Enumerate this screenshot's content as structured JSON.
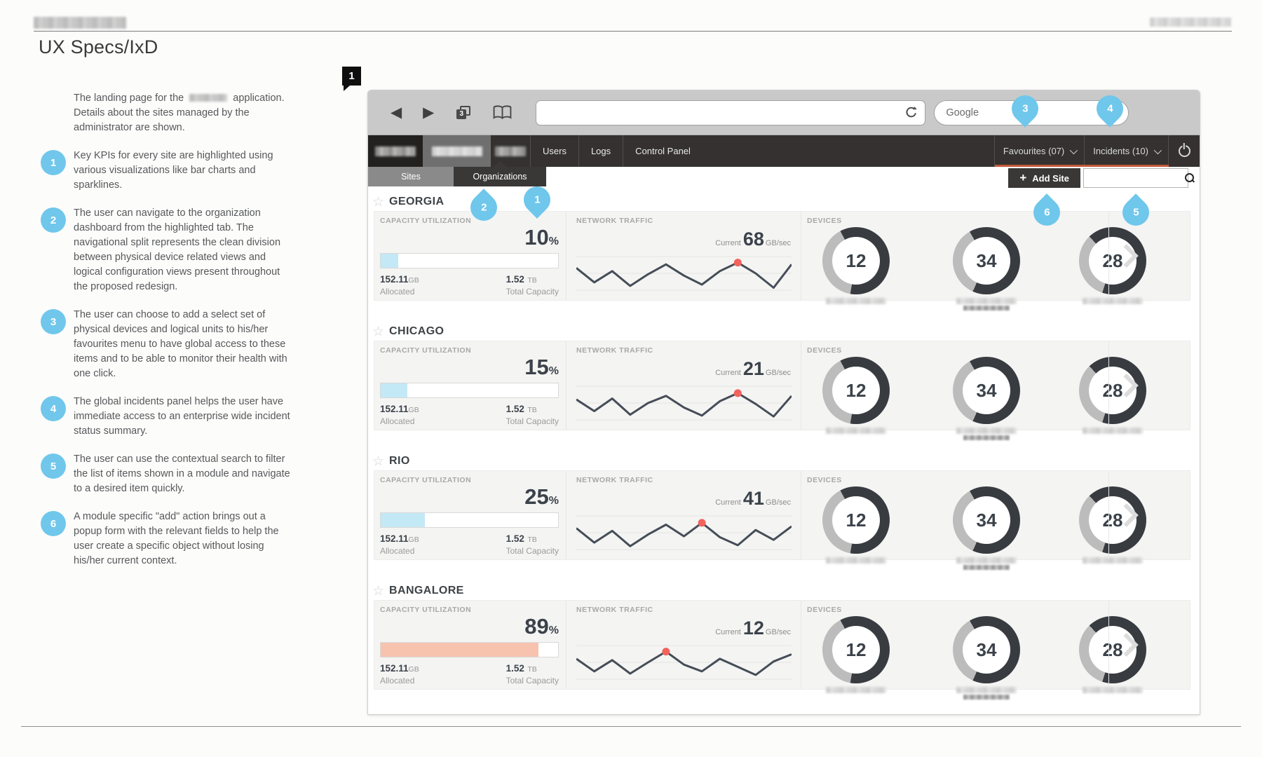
{
  "figure_label": "1",
  "page": {
    "title": "UX Specs/IxD"
  },
  "annotations": {
    "intro_before": "The landing page for the",
    "intro_after": "application. Details about the sites managed by the administrator are shown.",
    "items": [
      {
        "num": "1",
        "text": "Key KPIs for every site are highlighted using various visualizations like bar charts and sparklines."
      },
      {
        "num": "2",
        "text": "The user can navigate to the organization dashboard from the highlighted tab. The navigational split represents the clean division between physical device related views and logical configuration views present throughout the proposed redesign."
      },
      {
        "num": "3",
        "text": "The user can choose to add a select set of physical devices and logical units to his/her favourites menu to have global access to these items and to be able to monitor their health with one click."
      },
      {
        "num": "4",
        "text": "The global incidents panel helps the user have immediate access to an enterprise wide incident status summary."
      },
      {
        "num": "5",
        "text": "The user can use the contextual search to filter the list of items shown in a module and navigate to a desired item quickly."
      },
      {
        "num": "6",
        "text": "A module specific \"add\" action brings out a popup form with the relevant fields to help the user create a specific object without losing his/her current context."
      }
    ]
  },
  "browser": {
    "tab_count": "3",
    "search_engine": "Google",
    "nav_items": [
      "Users",
      "Logs",
      "Control Panel"
    ],
    "favourites_label": "Favourites (07)",
    "incidents_label": "Incidents (10)",
    "sites_tab": "Sites",
    "organizations_tab": "Organizations",
    "add_site_label": "Add Site",
    "add_site_plus": "+"
  },
  "dashboard_labels": {
    "capacity_title": "CAPACITY UTILIZATION",
    "traffic_title": "NETWORK TRAFFIC",
    "devices_title": "DEVICES",
    "current_label": "Current",
    "traffic_unit": "GB/sec",
    "allocated_label": "Allocated",
    "total_label": "Total Capacity",
    "allocated_unit": "GB",
    "total_unit": "TB"
  },
  "sites": [
    {
      "name": "GEORGIA",
      "capacity": {
        "percent": 10,
        "allocated": "152.11",
        "total": "1.52",
        "level": "normal"
      },
      "traffic": {
        "current": "68",
        "spark": [
          38,
          70,
          45,
          78,
          52,
          30,
          55,
          75,
          45,
          26,
          50,
          82,
          30
        ],
        "dot": 9
      },
      "devices": [
        "12",
        "34",
        "28"
      ]
    },
    {
      "name": "CHICAGO",
      "capacity": {
        "percent": 15,
        "allocated": "152.11",
        "total": "1.52",
        "level": "normal"
      },
      "traffic": {
        "current": "21",
        "spark": [
          42,
          68,
          40,
          76,
          50,
          34,
          60,
          78,
          46,
          28,
          52,
          80,
          34
        ],
        "dot": 9
      },
      "devices": [
        "12",
        "34",
        "28"
      ]
    },
    {
      "name": "RIO",
      "capacity": {
        "percent": 25,
        "allocated": "152.11",
        "total": "1.52",
        "level": "normal"
      },
      "traffic": {
        "current": "41",
        "spark": [
          40,
          72,
          46,
          80,
          54,
          32,
          58,
          28,
          60,
          78,
          44,
          66,
          36
        ],
        "dot": 7
      },
      "devices": [
        "12",
        "34",
        "28"
      ]
    },
    {
      "name": "BANGALORE",
      "capacity": {
        "percent": 89,
        "allocated": "152.11",
        "total": "1.52",
        "level": "high"
      },
      "traffic": {
        "current": "12",
        "spark": [
          42,
          70,
          45,
          75,
          50,
          26,
          55,
          70,
          42,
          60,
          78,
          48,
          32
        ],
        "dot": 5
      },
      "devices": [
        "12",
        "34",
        "28"
      ]
    }
  ],
  "callouts": [
    {
      "n": "1",
      "dir": "down"
    },
    {
      "n": "2",
      "dir": "up"
    },
    {
      "n": "3",
      "dir": "down"
    },
    {
      "n": "4",
      "dir": "down"
    },
    {
      "n": "5",
      "dir": "up"
    },
    {
      "n": "6",
      "dir": "up"
    }
  ],
  "colors": {
    "callout_blue": "#6fc7eb",
    "bar_normal": "#c3e8f6",
    "bar_high": "#f7c3ae",
    "accent_orange": "#c2593a",
    "spark_line": "#454d57",
    "spark_dot": "#f2635c",
    "donut_dark": "#383c40",
    "donut_light": "#bcbcbc",
    "grid_line": "#e3e3e2"
  }
}
